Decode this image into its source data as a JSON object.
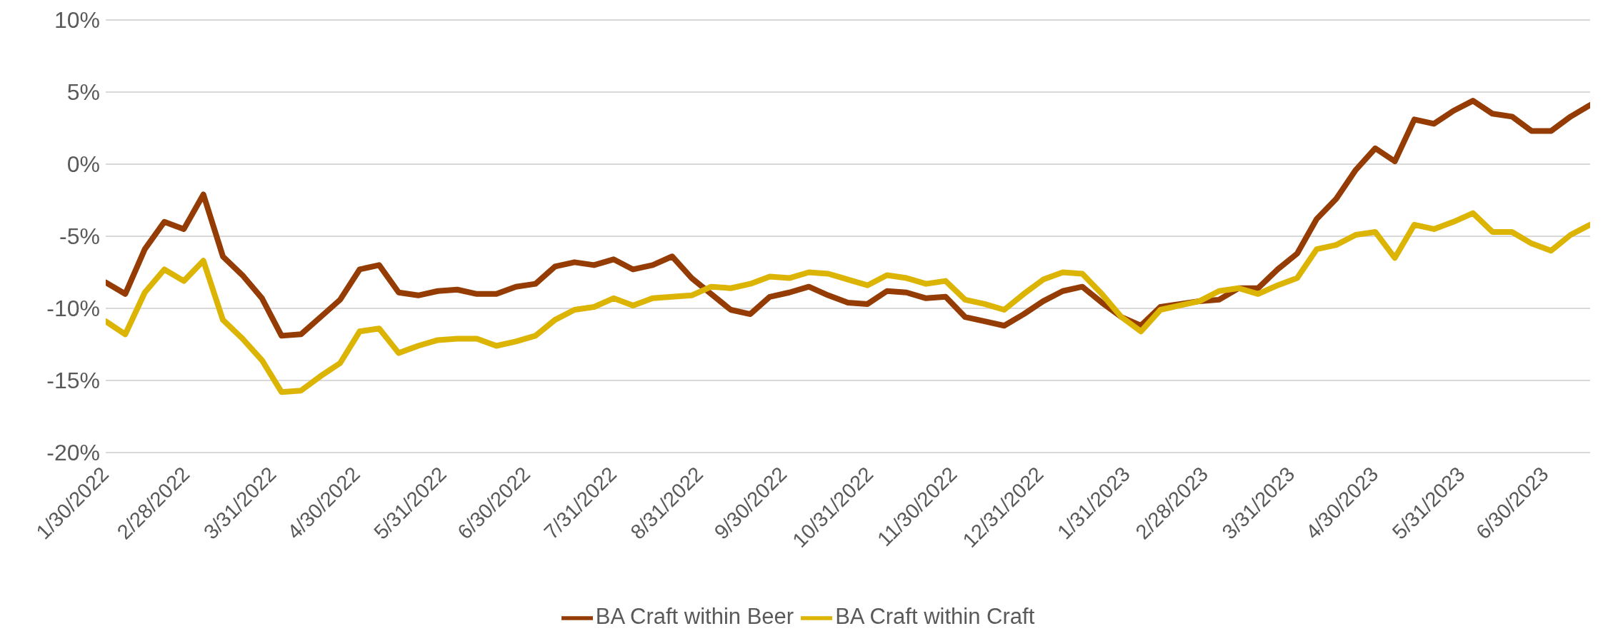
{
  "chart_data": {
    "type": "line",
    "x": [
      "2022-01-30",
      "2022-02-06",
      "2022-02-13",
      "2022-02-20",
      "2022-02-27",
      "2022-03-06",
      "2022-03-13",
      "2022-03-20",
      "2022-03-27",
      "2022-04-03",
      "2022-04-10",
      "2022-04-17",
      "2022-04-24",
      "2022-05-01",
      "2022-05-08",
      "2022-05-15",
      "2022-05-22",
      "2022-05-29",
      "2022-06-05",
      "2022-06-12",
      "2022-06-19",
      "2022-06-26",
      "2022-07-03",
      "2022-07-10",
      "2022-07-17",
      "2022-07-24",
      "2022-07-31",
      "2022-08-07",
      "2022-08-14",
      "2022-08-21",
      "2022-08-28",
      "2022-09-04",
      "2022-09-11",
      "2022-09-18",
      "2022-09-25",
      "2022-10-02",
      "2022-10-09",
      "2022-10-16",
      "2022-10-23",
      "2022-10-30",
      "2022-11-06",
      "2022-11-13",
      "2022-11-20",
      "2022-11-27",
      "2022-12-04",
      "2022-12-11",
      "2022-12-18",
      "2022-12-25",
      "2023-01-01",
      "2023-01-08",
      "2023-01-15",
      "2023-01-22",
      "2023-01-29",
      "2023-02-05",
      "2023-02-12",
      "2023-02-19",
      "2023-02-26",
      "2023-03-05",
      "2023-03-12",
      "2023-03-19",
      "2023-03-26",
      "2023-04-02",
      "2023-04-09",
      "2023-04-16",
      "2023-04-23",
      "2023-04-30",
      "2023-05-07",
      "2023-05-14",
      "2023-05-21",
      "2023-05-28",
      "2023-06-04",
      "2023-06-11",
      "2023-06-18",
      "2023-06-25",
      "2023-07-02",
      "2023-07-09",
      "2023-07-16"
    ],
    "series": [
      {
        "name": "BA Craft within Beer",
        "color": "#943c04",
        "values": [
          -8.2,
          -9.0,
          -5.9,
          -4.0,
          -4.5,
          -2.1,
          -6.4,
          -7.7,
          -9.3,
          -11.9,
          -11.8,
          -10.6,
          -9.4,
          -7.3,
          -7.0,
          -8.9,
          -9.1,
          -8.8,
          -8.7,
          -9.0,
          -9.0,
          -8.5,
          -8.3,
          -7.1,
          -6.8,
          -7.0,
          -6.6,
          -7.3,
          -7.0,
          -6.4,
          -7.9,
          -9.0,
          -10.1,
          -10.4,
          -9.2,
          -8.9,
          -8.5,
          -9.1,
          -9.6,
          -9.7,
          -8.8,
          -8.9,
          -9.3,
          -9.2,
          -10.6,
          -10.9,
          -11.2,
          -10.4,
          -9.5,
          -8.8,
          -8.5,
          -9.6,
          -10.6,
          -11.2,
          -9.9,
          -9.7,
          -9.5,
          -9.4,
          -8.6,
          -8.6,
          -7.3,
          -6.2,
          -3.8,
          -2.4,
          -0.4,
          1.1,
          0.2,
          3.1,
          2.8,
          3.7,
          4.4,
          3.5,
          3.3,
          2.3,
          2.3,
          3.3,
          4.1
        ]
      },
      {
        "name": "BA Craft within Craft",
        "color": "#dcb404",
        "values": [
          -10.9,
          -11.8,
          -8.9,
          -7.3,
          -8.1,
          -6.7,
          -10.8,
          -12.1,
          -13.6,
          -15.8,
          -15.7,
          -14.7,
          -13.8,
          -11.6,
          -11.4,
          -13.1,
          -12.6,
          -12.2,
          -12.1,
          -12.1,
          -12.6,
          -12.3,
          -11.9,
          -10.8,
          -10.1,
          -9.9,
          -9.3,
          -9.8,
          -9.3,
          -9.2,
          -9.1,
          -8.5,
          -8.6,
          -8.3,
          -7.8,
          -7.9,
          -7.5,
          -7.6,
          -8.0,
          -8.4,
          -7.7,
          -7.9,
          -8.3,
          -8.1,
          -9.4,
          -9.7,
          -10.1,
          -9.0,
          -8.0,
          -7.5,
          -7.6,
          -9.0,
          -10.6,
          -11.6,
          -10.1,
          -9.8,
          -9.5,
          -8.8,
          -8.6,
          -9.0,
          -8.4,
          -7.9,
          -5.9,
          -5.6,
          -4.9,
          -4.7,
          -6.5,
          -4.2,
          -4.5,
          -4.0,
          -3.4,
          -4.7,
          -4.7,
          -5.5,
          -6.0,
          -4.9,
          -4.2
        ]
      }
    ],
    "xlim": [
      "2022-01-30",
      "2023-07-16"
    ],
    "xticks": [
      {
        "value": "2022-01-30",
        "label": "1/30/2022"
      },
      {
        "value": "2022-02-28",
        "label": "2/28/2022"
      },
      {
        "value": "2022-03-31",
        "label": "3/31/2022"
      },
      {
        "value": "2022-04-30",
        "label": "4/30/2022"
      },
      {
        "value": "2022-05-31",
        "label": "5/31/2022"
      },
      {
        "value": "2022-06-30",
        "label": "6/30/2022"
      },
      {
        "value": "2022-07-31",
        "label": "7/31/2022"
      },
      {
        "value": "2022-08-31",
        "label": "8/31/2022"
      },
      {
        "value": "2022-09-30",
        "label": "9/30/2022"
      },
      {
        "value": "2022-10-31",
        "label": "10/31/2022"
      },
      {
        "value": "2022-11-30",
        "label": "11/30/2022"
      },
      {
        "value": "2022-12-31",
        "label": "12/31/2022"
      },
      {
        "value": "2023-01-31",
        "label": "1/31/2023"
      },
      {
        "value": "2023-02-28",
        "label": "2/28/2023"
      },
      {
        "value": "2023-03-31",
        "label": "3/31/2023"
      },
      {
        "value": "2023-04-30",
        "label": "4/30/2023"
      },
      {
        "value": "2023-05-31",
        "label": "5/31/2023"
      },
      {
        "value": "2023-06-30",
        "label": "6/30/2023"
      }
    ],
    "ylim": [
      -20,
      10
    ],
    "yticks": [
      {
        "value": -20,
        "label": "-20%"
      },
      {
        "value": -15,
        "label": "-15%"
      },
      {
        "value": -10,
        "label": "-10%"
      },
      {
        "value": -5,
        "label": "-5%"
      },
      {
        "value": 0,
        "label": "0%"
      },
      {
        "value": 5,
        "label": "5%"
      },
      {
        "value": 10,
        "label": "10%"
      }
    ],
    "grid": "y",
    "legend": "bottom"
  }
}
